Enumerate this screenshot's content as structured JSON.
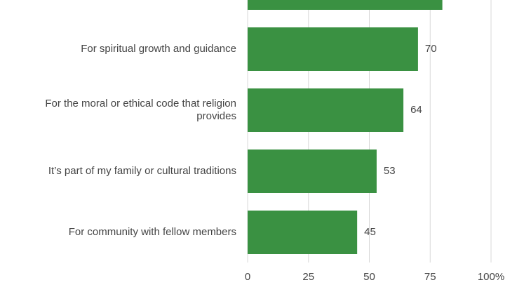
{
  "chart_data": {
    "type": "bar",
    "orientation": "horizontal",
    "categories": [
      null,
      "For spiritual growth and guidance",
      "For the moral or ethical code that religion provides",
      "It’s part of my family or cultural traditions",
      "For community with fellow members"
    ],
    "values": [
      80,
      70,
      64,
      53,
      45
    ],
    "color": "#3a9142",
    "xlim": [
      0,
      100
    ],
    "xticks": [
      0,
      25,
      50,
      75,
      {
        "value": 100,
        "label": "100%"
      }
    ],
    "grid": true
  }
}
